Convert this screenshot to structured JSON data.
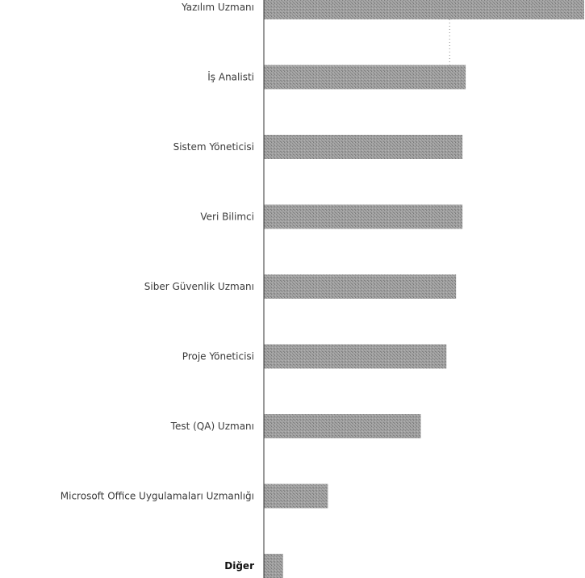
{
  "chart_data": {
    "type": "bar",
    "orientation": "horizontal",
    "title": "",
    "xlabel": "",
    "ylabel": "",
    "categories": [
      "Yazılım Uzmanı",
      "İş Analisti",
      "Sistem Yöneticisi",
      "Veri Bilimci",
      "Siber Güvenlik Uzmanı",
      "Proje Yöneticisi",
      "Test (QA) Uzmanı",
      "Microsoft Office Uygulamaları Uzmanlığı",
      "Diğer"
    ],
    "values": [
      100,
      63,
      62,
      62,
      60,
      57,
      49,
      20,
      6
    ],
    "xlim": [
      0,
      100
    ],
    "grid": false,
    "legend": "none",
    "bold_categories": [
      "Diğer"
    ],
    "reference_line_value": 58,
    "colors": {
      "bar": "#9a9a9a",
      "bar_texture": "#7c7c7c",
      "label": "#3a3a3a",
      "axis": "#333333",
      "reference_line": "#8a8a8a"
    }
  }
}
